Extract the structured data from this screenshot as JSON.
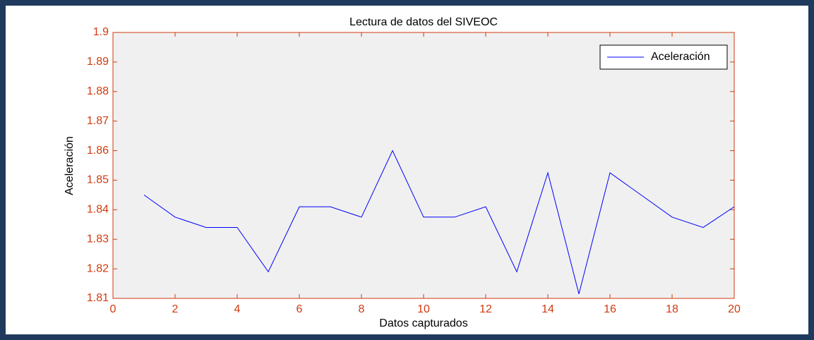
{
  "chart_data": {
    "type": "line",
    "title": "Lectura de datos del SIVEOC",
    "x_label": "Datos capturados",
    "y_label": "Aceleración",
    "x": [
      1,
      2,
      3,
      4,
      5,
      6,
      7,
      8,
      9,
      10,
      11,
      12,
      13,
      14,
      15,
      16,
      17,
      18,
      19,
      20
    ],
    "series": [
      {
        "name": "Aceleración",
        "color": "#0000ff",
        "values": [
          1.845,
          1.8375,
          1.834,
          1.834,
          1.819,
          1.841,
          1.841,
          1.8375,
          1.86,
          1.8375,
          1.8375,
          1.841,
          1.819,
          1.8525,
          1.8115,
          1.8525,
          1.845,
          1.8375,
          1.834,
          1.841
        ]
      }
    ],
    "xlim": [
      0,
      20
    ],
    "xticks": [
      0,
      2,
      4,
      6,
      8,
      10,
      12,
      14,
      16,
      18,
      20
    ],
    "ylim": [
      1.81,
      1.9
    ],
    "yticks": [
      1.81,
      1.82,
      1.83,
      1.84,
      1.85,
      1.86,
      1.87,
      1.88,
      1.89,
      1.9
    ],
    "axis_color": "#d03a10",
    "legend": "upper right",
    "grid": false
  }
}
